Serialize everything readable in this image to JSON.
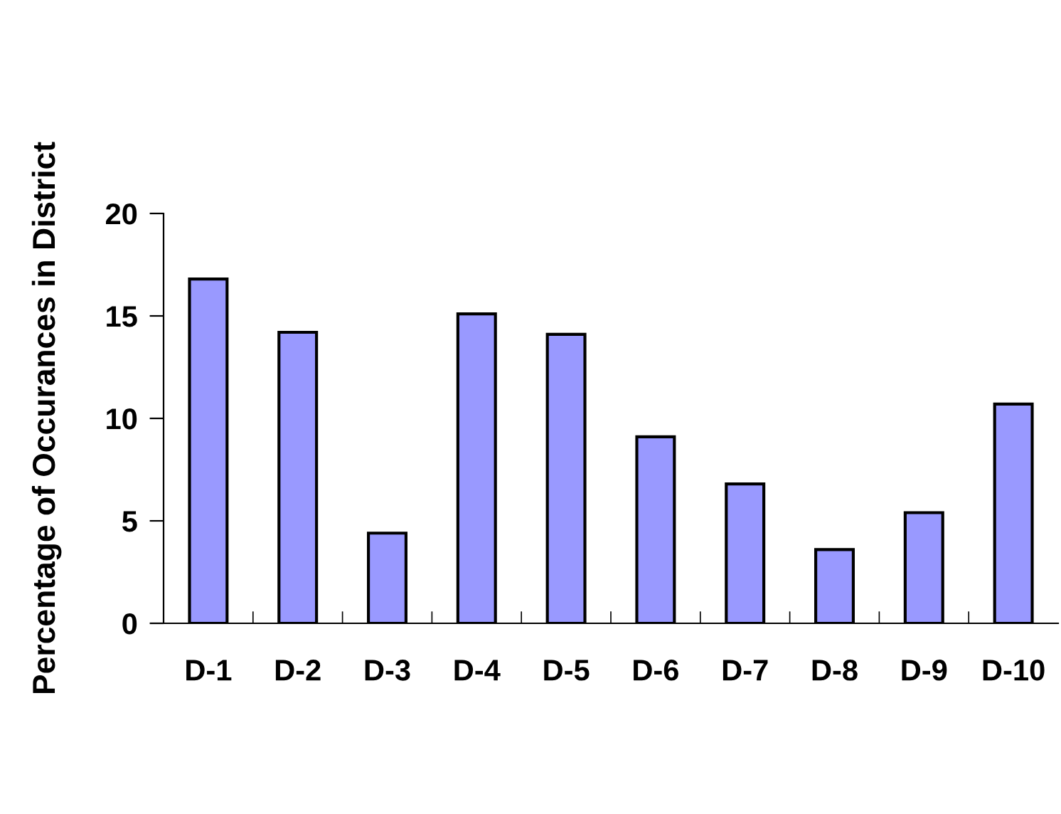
{
  "chart_data": {
    "type": "bar",
    "ylabel": "Percentage of Occurances in District",
    "categories": [
      "D-1",
      "D-2",
      "D-3",
      "D-4",
      "D-5",
      "D-6",
      "D-7",
      "D-8",
      "D-9",
      "D-10"
    ],
    "values": [
      16.8,
      14.2,
      4.4,
      15.1,
      14.1,
      9.1,
      6.8,
      3.6,
      5.4,
      10.7
    ],
    "color": "#9999ff",
    "ylim": [
      0,
      20
    ],
    "yticks": [
      0,
      5,
      10,
      15,
      20
    ],
    "grid": false,
    "legend": false
  }
}
